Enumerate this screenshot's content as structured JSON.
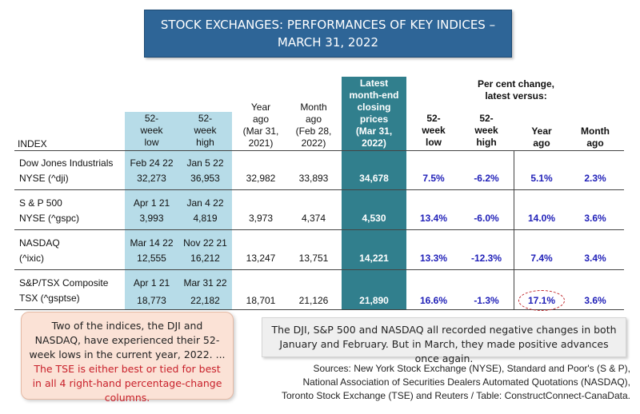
{
  "title": {
    "line1": "STOCK EXCHANGES: PERFORMANCES OF KEY INDICES –",
    "line2": "MARCH 31, 2022"
  },
  "headers": {
    "index": "INDEX",
    "low52": [
      "52-",
      "week",
      "low"
    ],
    "high52": [
      "52-",
      "week",
      "high"
    ],
    "year_ago": [
      "Year",
      "ago",
      "(Mar 31,",
      "2021)"
    ],
    "month_ago": [
      "Month",
      "ago",
      "(Feb 28,",
      "2022)"
    ],
    "latest": [
      "Latest",
      "month-end",
      "closing",
      "prices",
      "(Mar 31,",
      "2022)"
    ],
    "pct_change_title": [
      "Per cent change,",
      "latest versus:"
    ],
    "pct_low": [
      "52-",
      "week",
      "low"
    ],
    "pct_high": [
      "52-",
      "week",
      "high"
    ],
    "pct_year": [
      "Year",
      "ago"
    ],
    "pct_month": [
      "Month",
      "ago"
    ]
  },
  "rows": [
    {
      "name": [
        "Dow Jones Industrials",
        "NYSE (^dji)"
      ],
      "low_date": "Feb 24 22",
      "low": "32,273",
      "high_date": "Jan 5 22",
      "high": "36,953",
      "year_ago": "32,982",
      "month_ago": "33,893",
      "latest": "34,678",
      "pct_low": "7.5%",
      "pct_high": "-6.2%",
      "pct_year": "5.1%",
      "pct_month": "2.3%"
    },
    {
      "name": [
        "S & P 500",
        "NYSE (^gspc)"
      ],
      "low_date": "Apr 1 21",
      "low": "3,993",
      "high_date": "Jan 4 22",
      "high": "4,819",
      "year_ago": "3,973",
      "month_ago": "4,374",
      "latest": "4,530",
      "pct_low": "13.4%",
      "pct_high": "-6.0%",
      "pct_year": "14.0%",
      "pct_month": "3.6%"
    },
    {
      "name": [
        "NASDAQ",
        "(^ixic)"
      ],
      "low_date": "Mar 14 22",
      "low": "12,555",
      "high_date": "Nov 22 21",
      "high": "16,212",
      "year_ago": "13,247",
      "month_ago": "13,751",
      "latest": "14,221",
      "pct_low": "13.3%",
      "pct_high": "-12.3%",
      "pct_year": "7.4%",
      "pct_month": "3.4%"
    },
    {
      "name": [
        "S&P/TSX Composite",
        "TSX (^gsptse)"
      ],
      "low_date": "Apr 1 21",
      "low": "18,773",
      "high_date": "Mar 31 22",
      "high": "22,182",
      "year_ago": "18,701",
      "month_ago": "21,126",
      "latest": "21,890",
      "pct_low": "16.6%",
      "pct_high": "-1.3%",
      "pct_year": "17.1%",
      "pct_month": "3.6%"
    }
  ],
  "note_left": {
    "black": "Two of the indices, the DJI and NASDAQ, have experienced their 52-week lows in the current year, 2022. ...",
    "red": "The TSE is either best or tied for best in all 4 right-hand percentage-change columns."
  },
  "note_right": "The DJI, S&P 500 and NASDAQ all recorded negative changes in both January and February. But in March, they made positive advances once again.",
  "sources": [
    "Sources: New York Stock Exchange (NYSE), Standard and Poor's (S & P),",
    "National Association of Securities Dealers Automated Quotations (NASDAQ),",
    "Toronto Stock Exchange (TSE) and Reuters / Table: ConstructConnect-CanaData."
  ],
  "colors": {
    "title_bg": "#2e6597",
    "light_band": "#b7dce8",
    "dark_band": "#317f8d",
    "pct_text": "#1f1fb8",
    "highlight_red": "#c8202a"
  }
}
